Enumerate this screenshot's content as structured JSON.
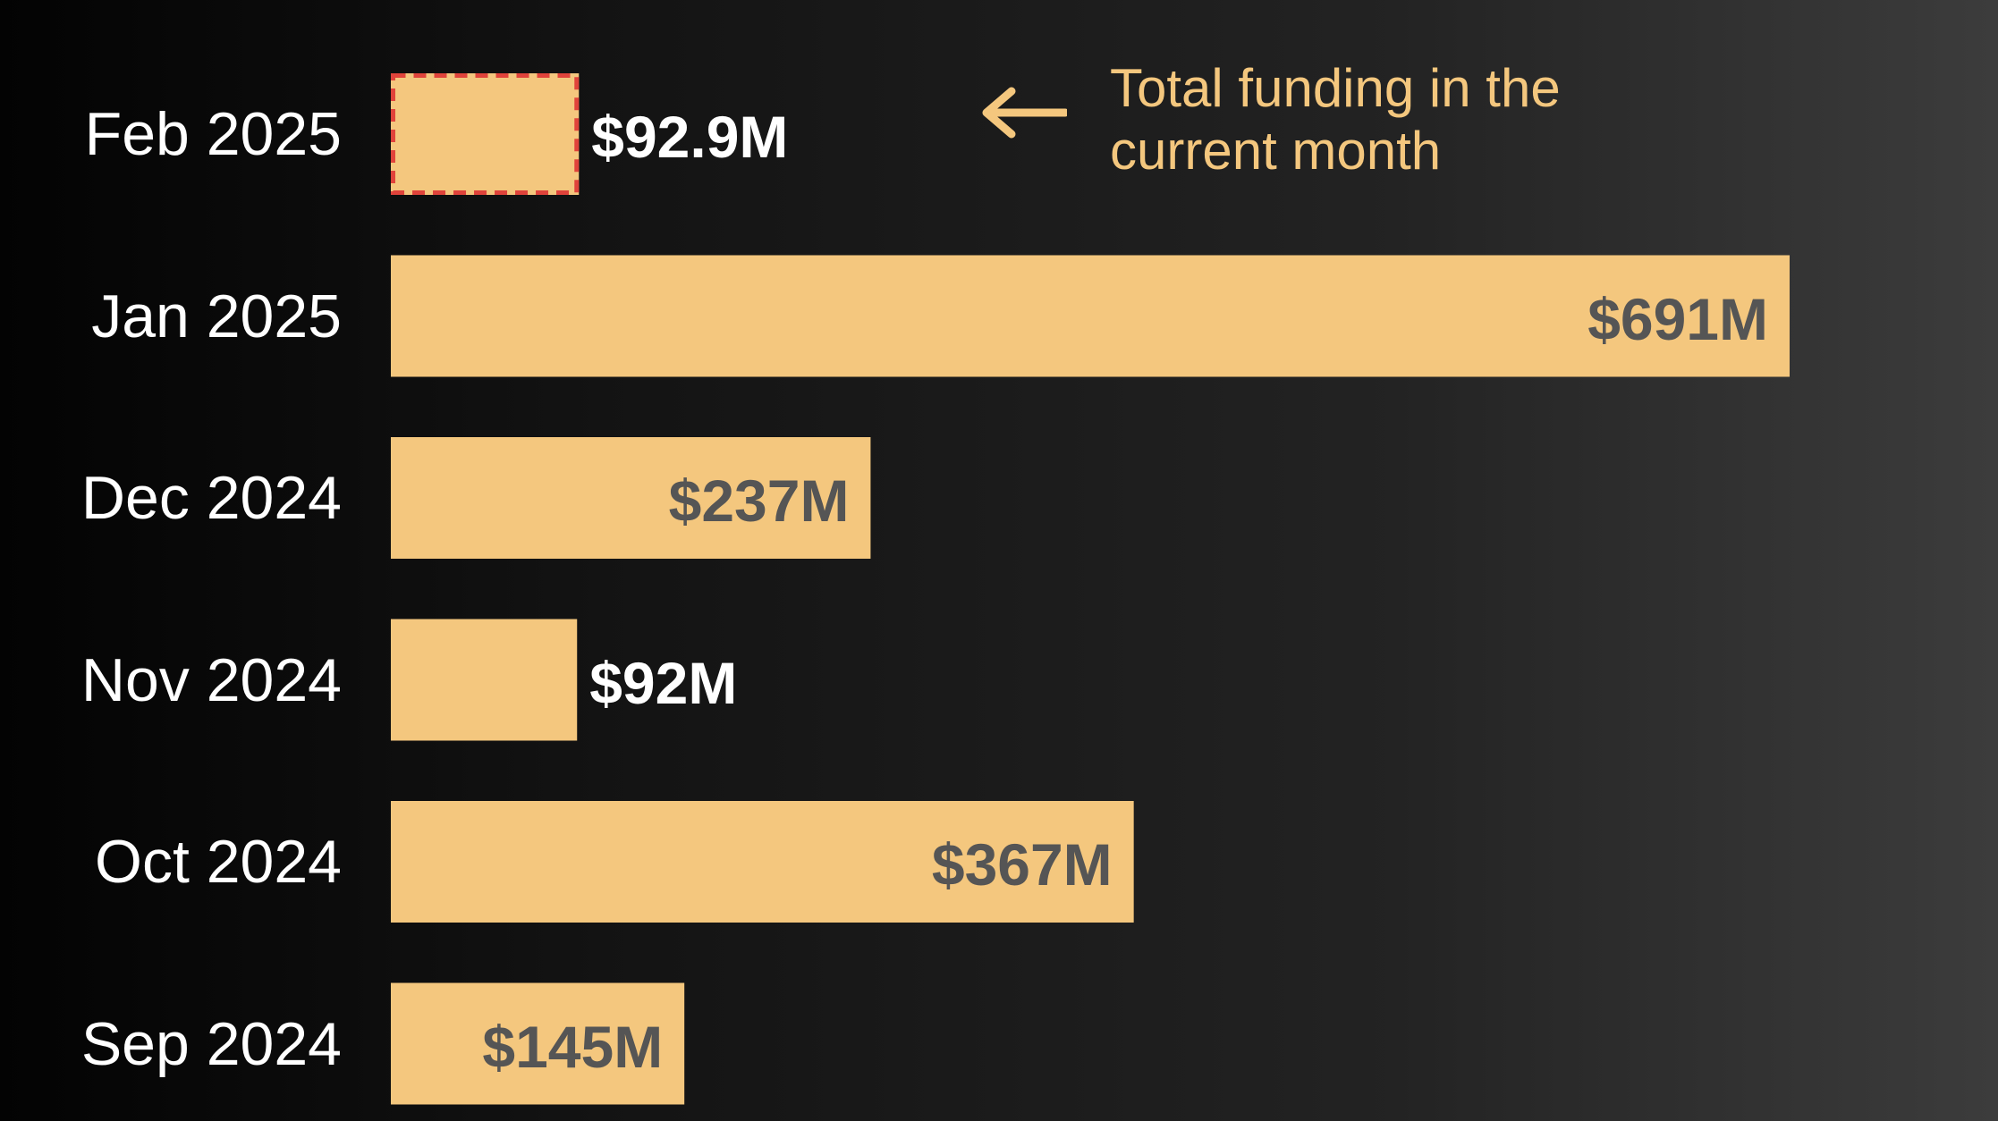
{
  "chart_data": {
    "type": "bar",
    "orientation": "horizontal",
    "categories": [
      "Feb 2025",
      "Jan 2025",
      "Dec 2024",
      "Nov 2024",
      "Oct 2024",
      "Sep 2024"
    ],
    "values": [
      92.9,
      691,
      237,
      92,
      367,
      145
    ],
    "value_labels": [
      "$92.9M",
      "$691M",
      "$237M",
      "$92M",
      "$367M",
      "$145M"
    ],
    "unit": "$M",
    "xlim": [
      0,
      700
    ],
    "grid": false,
    "bar_color": "#f4c77e",
    "highlight": {
      "category": "Feb 2025",
      "border_color": "#e0433b",
      "border_style": "dashed"
    },
    "annotation": {
      "text": "Total funding in the current month",
      "target": "Feb 2025",
      "color": "#f4c77e",
      "arrow": "left-arrow-icon"
    }
  }
}
